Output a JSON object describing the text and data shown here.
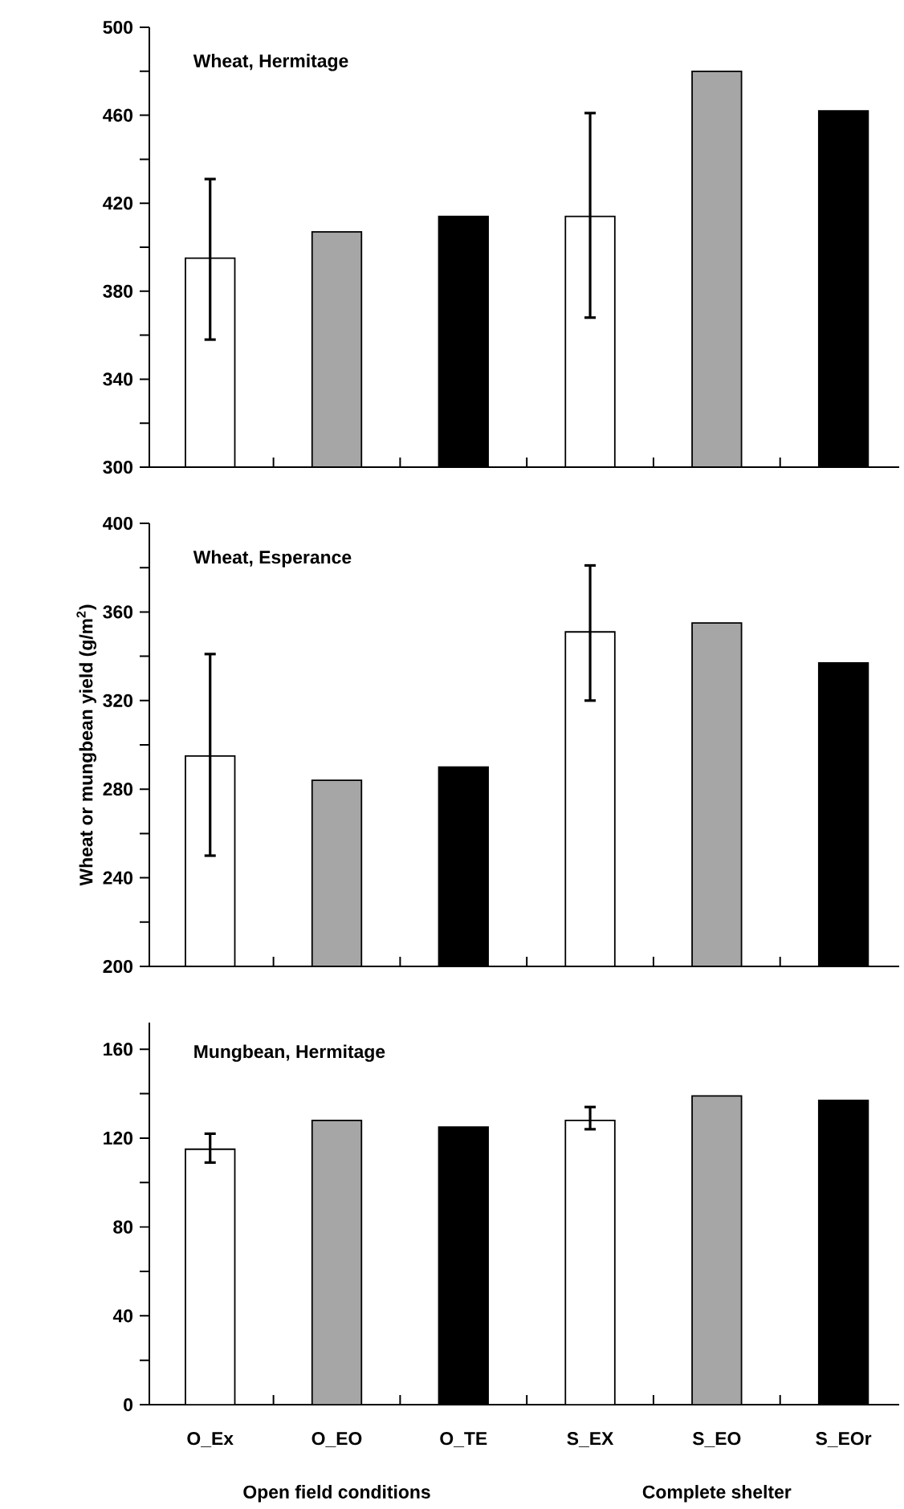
{
  "chart_data": [
    {
      "type": "bar",
      "title": "Wheat, Hermitage",
      "categories": [
        null,
        null,
        null,
        null,
        null,
        null
      ],
      "values": [
        395,
        407,
        414,
        414,
        480,
        462
      ],
      "colors": [
        "#ffffff",
        "#a6a6a6",
        "#000000",
        "#ffffff",
        "#a6a6a6",
        "#000000"
      ],
      "errors": [
        [
          358,
          431
        ],
        null,
        null,
        [
          368,
          461
        ],
        null,
        null
      ],
      "ylim": [
        300,
        500
      ],
      "yticks": [
        300,
        {
          "value": 320,
          "label": null
        },
        340,
        {
          "value": 360,
          "label": null
        },
        380,
        {
          "value": 400,
          "label": null
        },
        420,
        {
          "value": 440,
          "label": null
        },
        460,
        {
          "value": 480,
          "label": null
        },
        500
      ],
      "tick_labels": "y"
    },
    {
      "type": "bar",
      "title": "Wheat, Esperance",
      "ylabel": "Wheat or mungbean yield (g/m$^{2}$)",
      "categories": [
        null,
        null,
        null,
        null,
        null,
        null
      ],
      "values": [
        295,
        284,
        290,
        351,
        355,
        337
      ],
      "colors": [
        "#ffffff",
        "#a6a6a6",
        "#000000",
        "#ffffff",
        "#a6a6a6",
        "#000000"
      ],
      "errors": [
        [
          250,
          341
        ],
        null,
        null,
        [
          320,
          381
        ],
        null,
        null
      ],
      "ylim": [
        200,
        400
      ],
      "yticks": [
        200,
        {
          "value": 220,
          "label": null
        },
        240,
        {
          "value": 260,
          "label": null
        },
        280,
        {
          "value": 300,
          "label": null
        },
        320,
        {
          "value": 340,
          "label": null
        },
        360,
        {
          "value": 380,
          "label": null
        },
        400
      ],
      "tick_labels": "y"
    },
    {
      "type": "bar",
      "title": "Mungbean, Hermitage",
      "categories": [
        "O_Ex",
        "O_EO",
        "O_TE",
        "S_EX",
        "S_EO",
        "S_EOr"
      ],
      "values": [
        115,
        128,
        125,
        128,
        139,
        137
      ],
      "colors": [
        "#ffffff",
        "#a6a6a6",
        "#000000",
        "#ffffff",
        "#a6a6a6",
        "#000000"
      ],
      "errors": [
        [
          109,
          122
        ],
        null,
        null,
        [
          124,
          134
        ],
        null,
        null
      ],
      "ylim": [
        0,
        172
      ],
      "yticks": [
        0,
        {
          "value": 20,
          "label": null
        },
        40,
        {
          "value": 60,
          "label": null
        },
        80,
        {
          "value": 100,
          "label": null
        },
        120,
        {
          "value": 140,
          "label": null
        },
        160
      ],
      "annotations": [
        "Open field conditions",
        "Complete shelter"
      ]
    }
  ]
}
